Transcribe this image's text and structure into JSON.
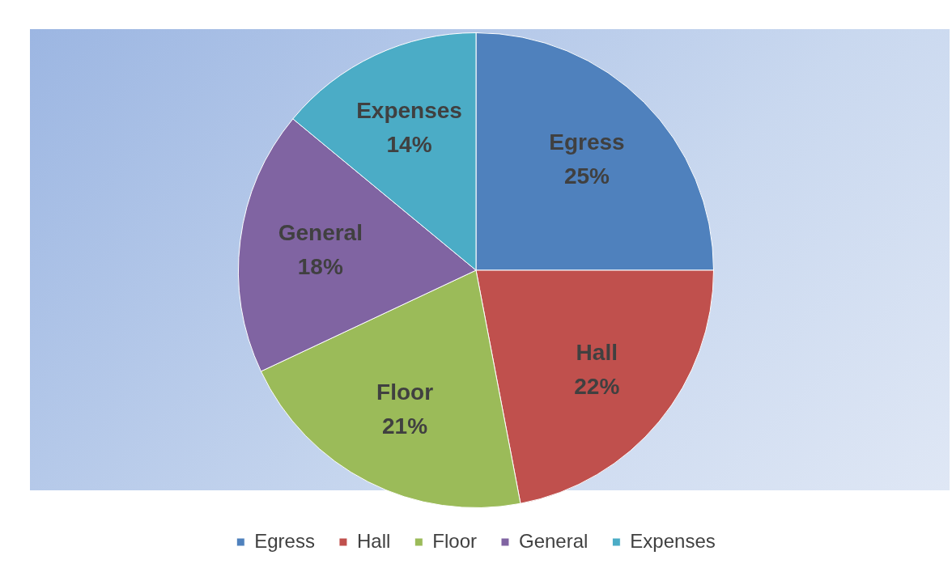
{
  "chart_data": {
    "type": "pie",
    "categories": [
      "Egress",
      "Hall",
      "Floor",
      "General",
      "Expenses"
    ],
    "values": [
      25,
      22,
      21,
      18,
      14
    ],
    "colors": [
      "#4f81bd",
      "#c0504d",
      "#9bbb59",
      "#8064a2",
      "#4bacc6"
    ],
    "value_labels": [
      "25%",
      "22%",
      "21%",
      "18%",
      "14%"
    ],
    "legend": "bottom"
  }
}
